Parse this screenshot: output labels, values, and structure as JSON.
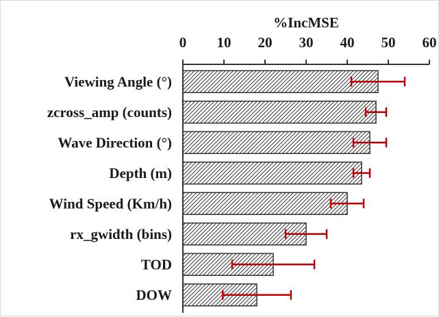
{
  "chart_data": {
    "type": "bar",
    "orientation": "horizontal",
    "xlabel": "%IncMSE",
    "xlim": [
      0,
      60
    ],
    "xticks": [
      "0",
      "10",
      "20",
      "30",
      "40",
      "50",
      "60"
    ],
    "x_axis_position": "top",
    "grid": false,
    "categories": [
      "Viewing Angle (°)",
      "zcross_amp (counts)",
      "Wave Direction (°)",
      "Depth (m)",
      "Wind Speed (Km/h)",
      "rx_gwidth (bins)",
      "TOD",
      "DOW"
    ],
    "values": [
      47.5,
      47.0,
      45.5,
      43.5,
      40.0,
      30.0,
      22.0,
      18.0
    ],
    "error": [
      6.5,
      2.5,
      4.0,
      2.0,
      4.0,
      5.0,
      10.0,
      8.3
    ],
    "bar_pattern": "diagonal-hatch",
    "bar_color": "#333333",
    "error_color": "#c00000"
  }
}
